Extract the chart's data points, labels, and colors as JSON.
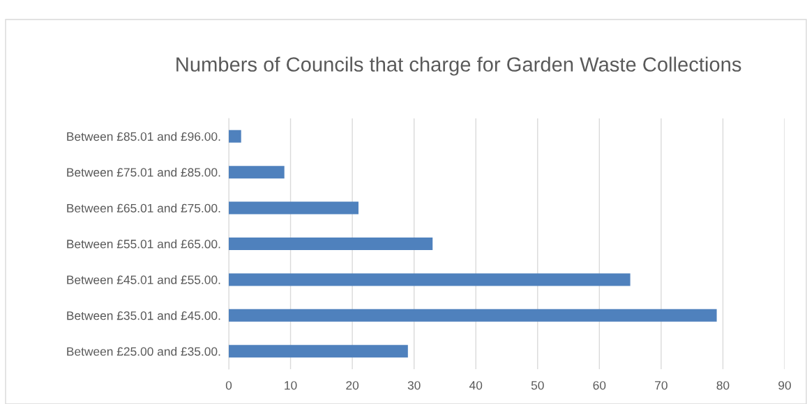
{
  "chart_data": {
    "type": "bar",
    "orientation": "horizontal",
    "title": "Numbers of Councils that charge for Garden Waste Collections",
    "categories": [
      "Between £85.01 and £96.00.",
      "Between £75.01 and £85.00.",
      "Between £65.01 and £75.00.",
      "Between £55.01 and £65.00.",
      "Between £45.01 and £55.00.",
      "Between £35.01 and £45.00.",
      "Between £25.00 and £35.00."
    ],
    "values": [
      2,
      9,
      21,
      33,
      65,
      79,
      29
    ],
    "color": "#4f81bd",
    "xlim": [
      0,
      90
    ],
    "xticks": [
      0,
      10,
      20,
      30,
      40,
      50,
      60,
      70,
      80,
      90
    ],
    "grid": "x",
    "legend": false
  }
}
